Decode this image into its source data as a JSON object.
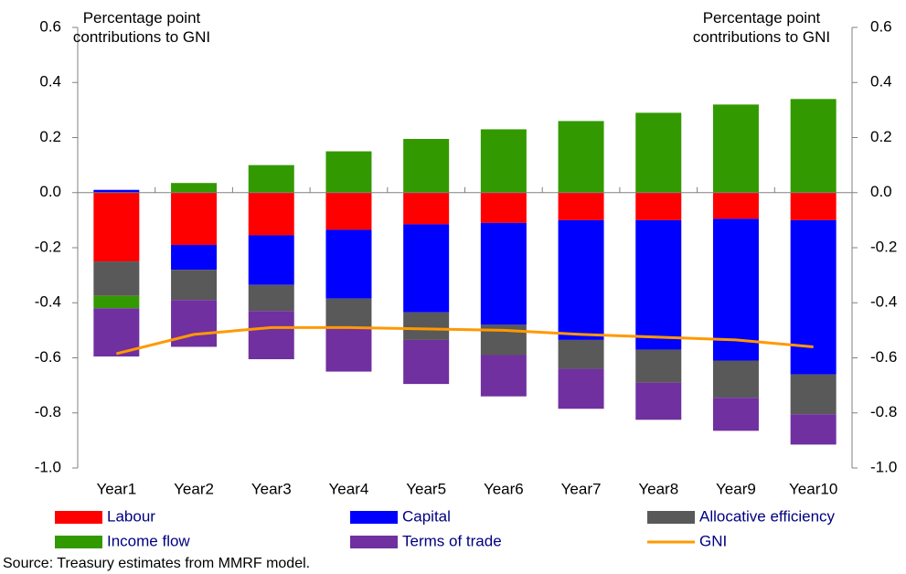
{
  "chart_data": {
    "type": "bar",
    "y_label": "Percentage point contributions to GNI",
    "y2_label": "Percentage point contributions to GNI",
    "categories": [
      "Year1",
      "Year2",
      "Year3",
      "Year4",
      "Year5",
      "Year6",
      "Year7",
      "Year8",
      "Year9",
      "Year10"
    ],
    "series": [
      {
        "name": "Labour",
        "color": "#ff0000",
        "values": [
          -0.25,
          -0.19,
          -0.155,
          -0.135,
          -0.115,
          -0.11,
          -0.1,
          -0.1,
          -0.095,
          -0.1
        ]
      },
      {
        "name": "Capital",
        "color": "#0000ff",
        "values": [
          0.01,
          -0.09,
          -0.18,
          -0.25,
          -0.32,
          -0.37,
          -0.435,
          -0.47,
          -0.515,
          -0.56
        ]
      },
      {
        "name": "Allocative efficiency",
        "color": "#595959",
        "values": [
          -0.125,
          -0.11,
          -0.095,
          -0.105,
          -0.1,
          -0.11,
          -0.105,
          -0.12,
          -0.135,
          -0.145
        ]
      },
      {
        "name": "Income flow",
        "color": "#339900",
        "values": [
          -0.045,
          0.035,
          0.1,
          0.15,
          0.195,
          0.23,
          0.26,
          0.29,
          0.32,
          0.34
        ]
      },
      {
        "name": "Terms of trade",
        "color": "#7030a0",
        "values": [
          -0.175,
          -0.17,
          -0.175,
          -0.16,
          -0.16,
          -0.15,
          -0.145,
          -0.135,
          -0.12,
          -0.11
        ]
      },
      {
        "name": "GNI",
        "type": "line",
        "color": "#ff9900",
        "values": [
          -0.585,
          -0.515,
          -0.49,
          -0.49,
          -0.495,
          -0.5,
          -0.515,
          -0.525,
          -0.535,
          -0.56
        ]
      }
    ],
    "ylim": [
      -1.0,
      0.6
    ],
    "yticks": [
      {
        "value": -1.0,
        "label": "-1.0"
      },
      -0.8,
      -0.6,
      -0.4,
      -0.2,
      {
        "value": 0,
        "label": "0.0"
      },
      0.2,
      0.4,
      0.6
    ],
    "y2lim": [
      -1.0,
      0.6
    ],
    "y2ticks": [
      {
        "value": -1.0,
        "label": "-1.0"
      },
      -0.8,
      -0.6,
      -0.4,
      -0.2,
      {
        "value": 0,
        "label": "0.0"
      },
      0.2,
      0.4,
      0.6
    ],
    "source": "Source: Treasury estimates from MMRF model."
  }
}
